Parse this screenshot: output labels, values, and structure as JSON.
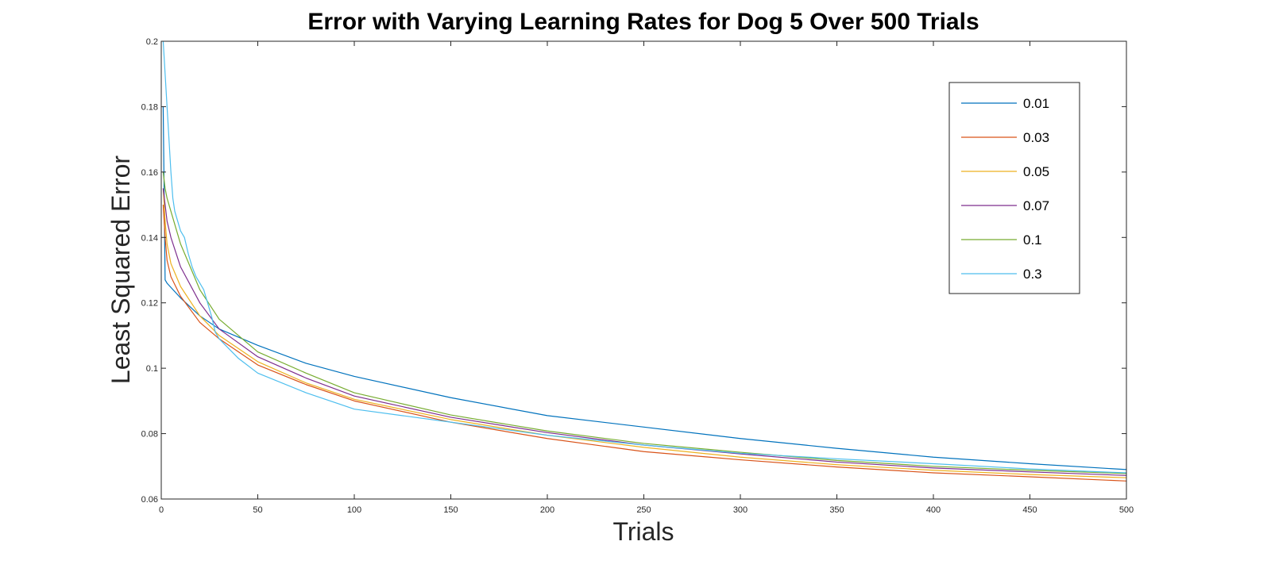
{
  "chart_data": {
    "type": "line",
    "title": "Error with Varying Learning Rates for Dog 5 Over 500 Trials",
    "xlabel": "Trials",
    "ylabel": "Least Squared Error",
    "xlim": [
      0,
      500
    ],
    "ylim": [
      0.06,
      0.2
    ],
    "xticks": [
      0,
      50,
      100,
      150,
      200,
      250,
      300,
      350,
      400,
      450,
      500
    ],
    "xtick_labels": [
      "0",
      "50",
      "100",
      "150",
      "200",
      "250",
      "300",
      "350",
      "400",
      "450",
      "500"
    ],
    "yticks": [
      0.06,
      0.08,
      0.1,
      0.12,
      0.14,
      0.16,
      0.18,
      0.2
    ],
    "ytick_labels": [
      "0.06",
      "0.08",
      "0.1",
      "0.12",
      "0.14",
      "0.16",
      "0.18",
      "0.2"
    ],
    "grid": false,
    "legend_position": "top-right",
    "series": [
      {
        "name": "0.01",
        "color": "#0072BD",
        "x": [
          1,
          2,
          3,
          10,
          20,
          30,
          50,
          75,
          100,
          150,
          200,
          250,
          300,
          350,
          400,
          450,
          500
        ],
        "y": [
          0.18,
          0.127,
          0.126,
          0.1215,
          0.116,
          0.112,
          0.107,
          0.1015,
          0.0975,
          0.091,
          0.0855,
          0.082,
          0.0785,
          0.0755,
          0.0728,
          0.0708,
          0.069
        ]
      },
      {
        "name": "0.03",
        "color": "#D95319",
        "x": [
          1,
          2,
          3,
          5,
          10,
          20,
          30,
          50,
          75,
          100,
          150,
          200,
          250,
          300,
          350,
          400,
          450,
          500
        ],
        "y": [
          0.15,
          0.14,
          0.133,
          0.128,
          0.122,
          0.114,
          0.109,
          0.101,
          0.095,
          0.09,
          0.0835,
          0.0785,
          0.0745,
          0.072,
          0.0698,
          0.068,
          0.0668,
          0.0655
        ]
      },
      {
        "name": "0.05",
        "color": "#EDB120",
        "x": [
          1,
          2,
          3,
          5,
          10,
          20,
          30,
          50,
          75,
          100,
          150,
          200,
          250,
          300,
          350,
          400,
          450,
          500
        ],
        "y": [
          0.155,
          0.145,
          0.138,
          0.132,
          0.125,
          0.116,
          0.11,
          0.102,
          0.0955,
          0.0905,
          0.0843,
          0.0795,
          0.0758,
          0.0728,
          0.0705,
          0.0688,
          0.0675,
          0.0665
        ]
      },
      {
        "name": "0.07",
        "color": "#7E2F8E",
        "x": [
          1,
          2,
          3,
          5,
          10,
          20,
          30,
          50,
          75,
          100,
          150,
          200,
          250,
          300,
          350,
          400,
          450,
          500
        ],
        "y": [
          0.155,
          0.15,
          0.145,
          0.14,
          0.131,
          0.12,
          0.112,
          0.1035,
          0.097,
          0.0915,
          0.085,
          0.0803,
          0.0765,
          0.0738,
          0.0713,
          0.0695,
          0.0683,
          0.0672
        ]
      },
      {
        "name": "0.1",
        "color": "#77AC30",
        "x": [
          1,
          2,
          3,
          5,
          10,
          20,
          30,
          50,
          75,
          100,
          150,
          200,
          250,
          300,
          350,
          400,
          450,
          500
        ],
        "y": [
          0.16,
          0.155,
          0.152,
          0.148,
          0.138,
          0.124,
          0.115,
          0.105,
          0.0985,
          0.0925,
          0.0857,
          0.0808,
          0.077,
          0.0743,
          0.0718,
          0.07,
          0.0688,
          0.0678
        ]
      },
      {
        "name": "0.3",
        "color": "#4DBEEE",
        "x": [
          1,
          2,
          3,
          4,
          5,
          6,
          7,
          8,
          10,
          12,
          14,
          16,
          18,
          20,
          22,
          24,
          26,
          28,
          30,
          35,
          40,
          50,
          75,
          100,
          150,
          200,
          250,
          300,
          350,
          400,
          450,
          500
        ],
        "y": [
          0.2,
          0.19,
          0.18,
          0.17,
          0.16,
          0.152,
          0.148,
          0.146,
          0.142,
          0.14,
          0.135,
          0.131,
          0.128,
          0.126,
          0.124,
          0.12,
          0.116,
          0.111,
          0.109,
          0.106,
          0.103,
          0.0985,
          0.0925,
          0.0875,
          0.0835,
          0.0795,
          0.0765,
          0.074,
          0.0723,
          0.0708,
          0.0692,
          0.068
        ]
      }
    ]
  }
}
